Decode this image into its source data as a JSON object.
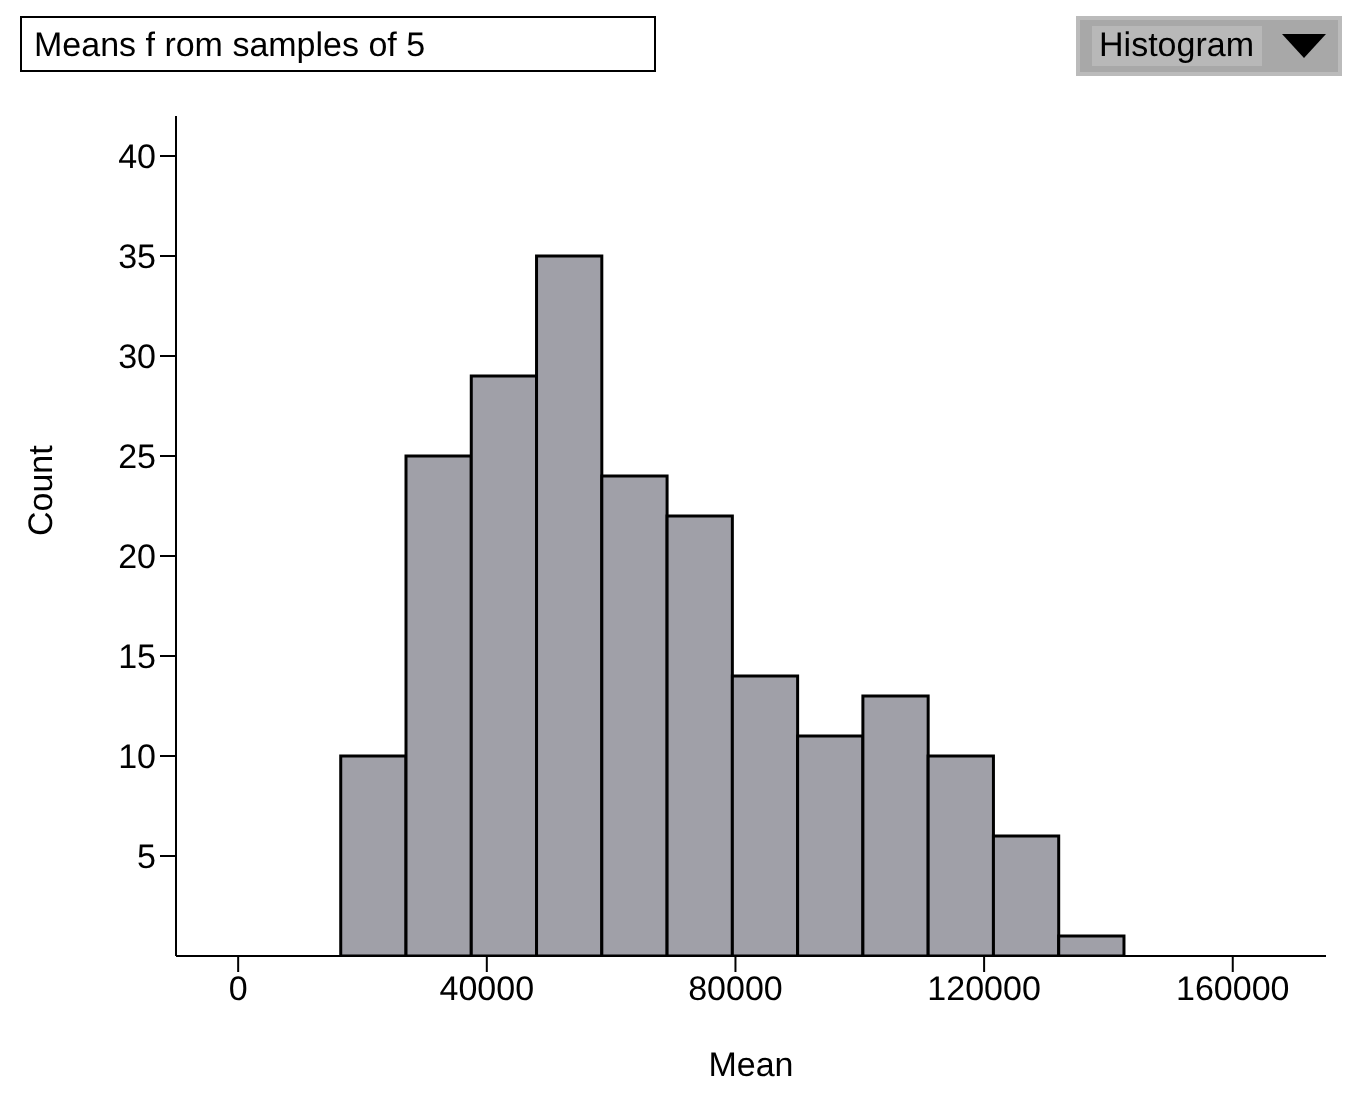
{
  "chart_data": {
    "type": "histogram",
    "title": "Means f rom samples of 5",
    "xlabel": "Mean",
    "ylabel": "Count",
    "annotations": [
      "Histogram"
    ],
    "bins": [
      16500,
      27000,
      37500,
      48000,
      58500,
      69000,
      79500,
      90000,
      100500,
      111000,
      121500,
      132000,
      142500
    ],
    "values": [
      10,
      25,
      29,
      35,
      24,
      22,
      14,
      11,
      13,
      10,
      6,
      1
    ],
    "color": "#a0a0a8",
    "xlim": [
      -10000,
      175000
    ],
    "xticks": [
      0,
      40000,
      80000,
      120000,
      160000
    ],
    "ylim": [
      0,
      42
    ],
    "yticks": [
      5,
      10,
      15,
      20,
      25,
      30,
      35,
      40
    ],
    "grid": false
  }
}
